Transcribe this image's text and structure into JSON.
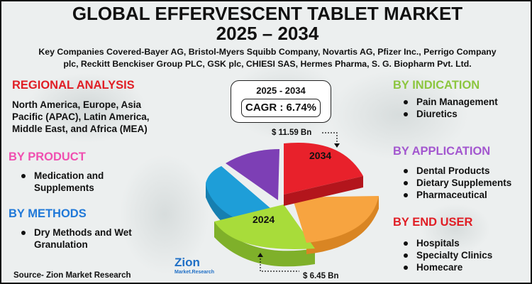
{
  "header": {
    "title_line1": "GLOBAL EFFERVESCENT TABLET MARKET",
    "title_line2": "2025 – 2034",
    "companies_line1": "Key Companies Covered-Bayer AG, Bristol-Myers Squibb Company, Novartis AG, Pfizer Inc., Perrigo Company",
    "companies_line2": "plc, Reckitt Benckiser Group PLC, GSK plc, CHIESI SAS, Hermes Pharma, S. G. Biopharm Pvt. Ltd."
  },
  "regional": {
    "heading": "REGIONAL ANALYSIS",
    "line1": "North America, Europe, Asia",
    "line2": "Pacific (APAC), Latin America,",
    "line3": "Middle East, and Africa (MEA)"
  },
  "product": {
    "heading": "BY PRODUCT",
    "item1_line1": "Medication and",
    "item1_line2": "Supplements"
  },
  "methods": {
    "heading": "BY METHODS",
    "item1_line1": "Dry Methods and Wet",
    "item1_line2": "Granulation"
  },
  "indication": {
    "heading": "BY INDICATION",
    "items": [
      "Pain Management",
      "Diuretics"
    ]
  },
  "application": {
    "heading": "BY APPLICATION",
    "items": [
      "Dental Products",
      "Dietary Supplements",
      "Pharmaceutical"
    ]
  },
  "end_user": {
    "heading": "BY END USER",
    "items": [
      "Hospitals",
      "Specialty Clinics",
      "Homecare"
    ]
  },
  "cagr": {
    "years": "2025 - 2034",
    "value": "CAGR : 6.74%"
  },
  "pie": {
    "label_2034": "2034",
    "label_2024": "2024",
    "value_2034": "$ 11.59 Bn",
    "value_2024": "$ 6.45 Bn",
    "colors": {
      "red": "#e8212b",
      "orange": "#f7a440",
      "green": "#a8dc3a",
      "blue": "#1e9ed8",
      "purple": "#7d3fb5"
    }
  },
  "logo": {
    "text": "Zion",
    "sub": "Market.Research"
  },
  "source": "Source- Zion Market Research",
  "colors": {
    "red": "#e01e25",
    "pink": "#f04fb0",
    "blue": "#1f78d8",
    "green": "#8cc63f",
    "purple": "#a357cf"
  }
}
